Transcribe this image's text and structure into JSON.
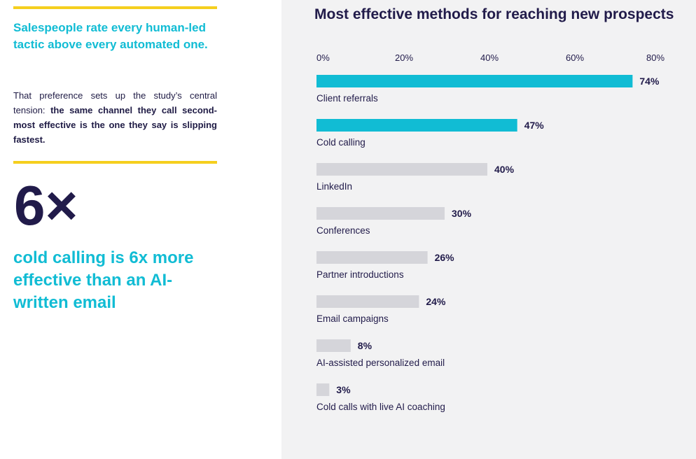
{
  "left": {
    "headline": "Salespeople rate every human-led tactic above every automated one.",
    "paragraph_lead": "That preference sets up the study’s central tension: ",
    "paragraph_bold": "the same channel they call second-most effective is the one they say is slipping fastest.",
    "stat_value": "6×",
    "stat_caption": "cold calling is 6x more effective than an AI-written email"
  },
  "colors": {
    "accent": "#11bcd4",
    "muted_bar": "#d5d5da",
    "rule": "#f5cf1e",
    "text": "#211b4a"
  },
  "chart_data": {
    "type": "bar",
    "orientation": "horizontal",
    "title": "Most effective methods for reaching new prospects",
    "xlim": [
      0,
      80
    ],
    "x_ticks": [
      "0%",
      "20%",
      "40%",
      "60%",
      "80%"
    ],
    "tick_values": [
      0,
      20,
      40,
      60,
      80
    ],
    "categories": [
      "Client referrals",
      "Cold calling",
      "LinkedIn",
      "Conferences",
      "Partner introductions",
      "Email campaigns",
      "AI-assisted personalized email",
      "Cold calls with live AI coaching"
    ],
    "values": [
      74,
      47,
      40,
      30,
      26,
      24,
      8,
      3
    ],
    "value_labels": [
      "74%",
      "47%",
      "40%",
      "30%",
      "26%",
      "24%",
      "8%",
      "3%"
    ],
    "highlighted": [
      true,
      true,
      false,
      false,
      false,
      false,
      false,
      false
    ],
    "grid": false
  }
}
